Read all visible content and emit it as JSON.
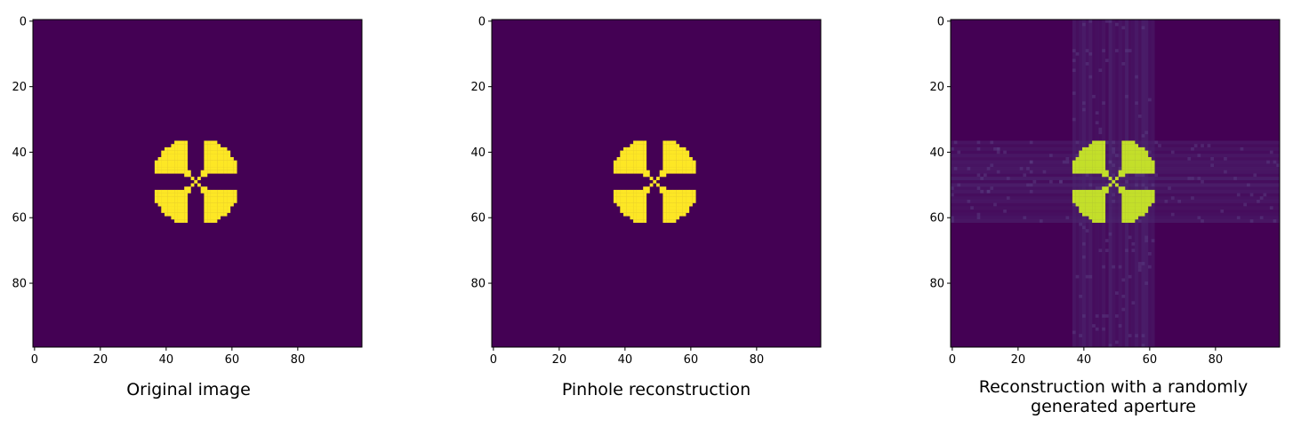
{
  "chart_data": [
    {
      "type": "heatmap",
      "title": "Original image",
      "grid_size": 100,
      "x_ticks": [
        0,
        20,
        40,
        60,
        80
      ],
      "y_ticks": [
        0,
        20,
        40,
        60,
        80
      ],
      "xlim": [
        0,
        99
      ],
      "ylim": [
        0,
        99
      ],
      "colormap": "viridis",
      "background_color": "#440154",
      "shape_color": "#fde725",
      "shape": "four-lobed cross centered at (49, 49), lobes reaching from center to about (40, 40), (58, 40), (40, 58), (58, 58)",
      "artifacts": false
    },
    {
      "type": "heatmap",
      "title": "Pinhole reconstruction",
      "grid_size": 100,
      "x_ticks": [
        0,
        20,
        40,
        60,
        80
      ],
      "y_ticks": [
        0,
        20,
        40,
        60,
        80
      ],
      "xlim": [
        0,
        99
      ],
      "ylim": [
        0,
        99
      ],
      "colormap": "viridis",
      "background_color": "#440154",
      "shape_color": "#fde725",
      "shape": "same four-lobed cross as original",
      "artifacts": false
    },
    {
      "type": "heatmap",
      "title": "Reconstruction with a randomly\ngenerated aperture",
      "grid_size": 100,
      "x_ticks": [
        0,
        20,
        40,
        60,
        80
      ],
      "y_ticks": [
        0,
        20,
        40,
        60,
        80
      ],
      "xlim": [
        0,
        99
      ],
      "ylim": [
        0,
        99
      ],
      "colormap": "viridis",
      "background_color": "#440154",
      "shape_color": "#c3df2a",
      "band_color": "#4c2a72",
      "shape": "same four-lobed cross with noise bands along rows 37-61 and columns 37-61",
      "artifacts": true
    }
  ]
}
